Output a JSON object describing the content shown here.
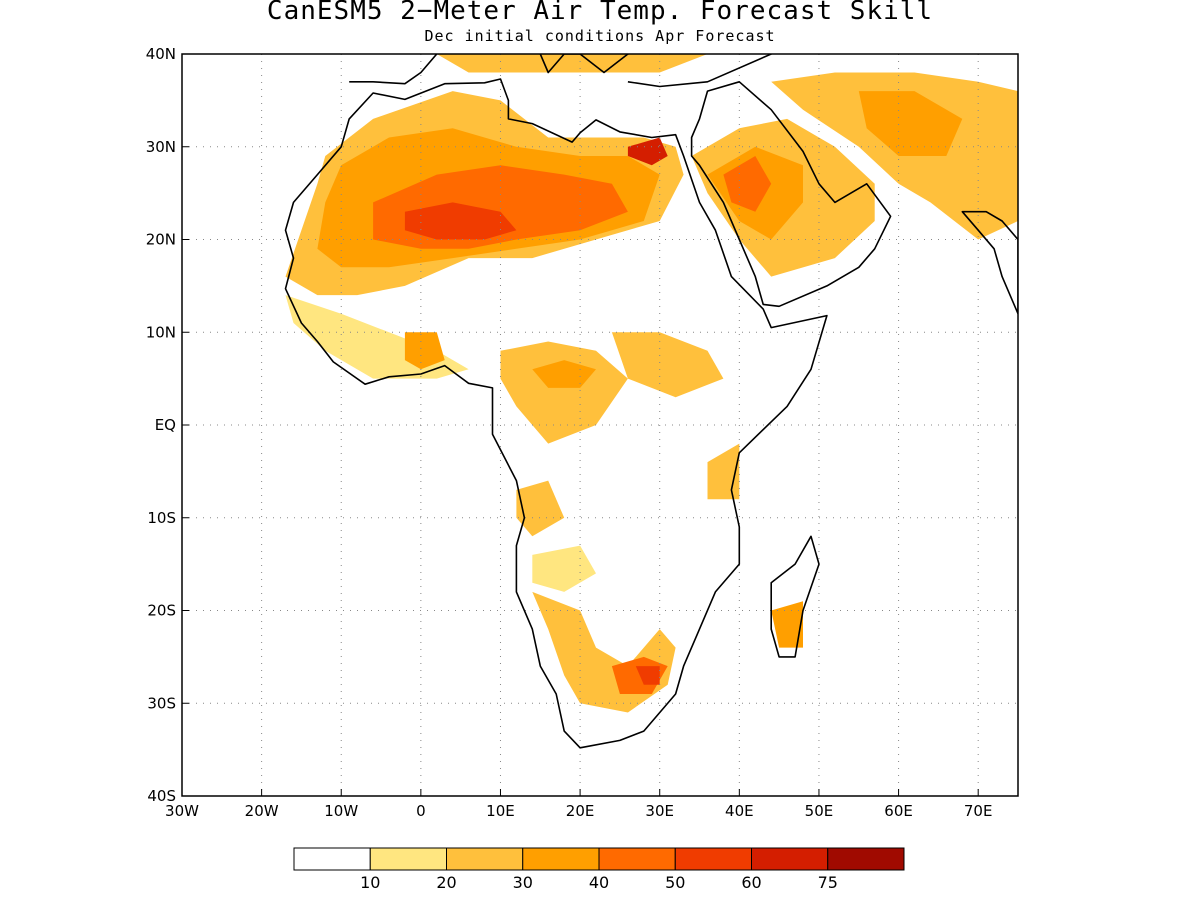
{
  "title": "CanESM5 2−Meter Air Temp. Forecast Skill",
  "subtitle": "Dec initial conditions  Apr Forecast",
  "axes": {
    "lon_min": -30,
    "lon_max": 75,
    "lat_min": -40,
    "lat_max": 40,
    "lon_ticks": [
      {
        "value": -30,
        "label": "30W"
      },
      {
        "value": -20,
        "label": "20W"
      },
      {
        "value": -10,
        "label": "10W"
      },
      {
        "value": 0,
        "label": "0"
      },
      {
        "value": 10,
        "label": "10E"
      },
      {
        "value": 20,
        "label": "20E"
      },
      {
        "value": 30,
        "label": "30E"
      },
      {
        "value": 40,
        "label": "40E"
      },
      {
        "value": 50,
        "label": "50E"
      },
      {
        "value": 60,
        "label": "60E"
      },
      {
        "value": 70,
        "label": "70E"
      }
    ],
    "lat_ticks": [
      {
        "value": 40,
        "label": "40N"
      },
      {
        "value": 30,
        "label": "30N"
      },
      {
        "value": 20,
        "label": "20N"
      },
      {
        "value": 10,
        "label": "10N"
      },
      {
        "value": 0,
        "label": "EQ"
      },
      {
        "value": -10,
        "label": "10S"
      },
      {
        "value": -20,
        "label": "20S"
      },
      {
        "value": -30,
        "label": "30S"
      },
      {
        "value": -40,
        "label": "40S"
      }
    ],
    "grid": "dotted"
  },
  "colorbar": {
    "colors": [
      "#ffffff",
      "#ffe680",
      "#ffc03c",
      "#ff9f00",
      "#ff6a00",
      "#f03c00",
      "#d41e00",
      "#a00a00"
    ],
    "labels": [
      "10",
      "20",
      "30",
      "40",
      "50",
      "60",
      "75"
    ]
  },
  "skill_regions": [
    {
      "level": 2,
      "points": [
        [
          -12,
          29
        ],
        [
          -6,
          33
        ],
        [
          4,
          36
        ],
        [
          10,
          35
        ],
        [
          16,
          31
        ],
        [
          24,
          31
        ],
        [
          28,
          31
        ],
        [
          32,
          30
        ],
        [
          33,
          27
        ],
        [
          30,
          22
        ],
        [
          22,
          20
        ],
        [
          14,
          18
        ],
        [
          6,
          18
        ],
        [
          -2,
          15
        ],
        [
          -8,
          14
        ],
        [
          -13,
          14
        ],
        [
          -17,
          16
        ],
        [
          -15,
          21
        ],
        [
          -13,
          26
        ]
      ]
    },
    {
      "level": 3,
      "points": [
        [
          -10,
          28
        ],
        [
          -4,
          31
        ],
        [
          4,
          32
        ],
        [
          12,
          30
        ],
        [
          20,
          29
        ],
        [
          26,
          29
        ],
        [
          30,
          27
        ],
        [
          28,
          22
        ],
        [
          20,
          20
        ],
        [
          12,
          19
        ],
        [
          4,
          18
        ],
        [
          -4,
          17
        ],
        [
          -10,
          17
        ],
        [
          -13,
          19
        ],
        [
          -12,
          24
        ]
      ]
    },
    {
      "level": 4,
      "points": [
        [
          -6,
          24
        ],
        [
          2,
          27
        ],
        [
          10,
          28
        ],
        [
          18,
          27
        ],
        [
          24,
          26
        ],
        [
          26,
          23
        ],
        [
          20,
          21
        ],
        [
          12,
          20
        ],
        [
          6,
          19
        ],
        [
          0,
          19
        ],
        [
          -6,
          20
        ]
      ]
    },
    {
      "level": 5,
      "points": [
        [
          -2,
          23
        ],
        [
          4,
          24
        ],
        [
          10,
          23
        ],
        [
          12,
          21
        ],
        [
          8,
          20
        ],
        [
          2,
          20
        ],
        [
          -2,
          21
        ]
      ]
    },
    {
      "level": 6,
      "points": [
        [
          26,
          30
        ],
        [
          30,
          31
        ],
        [
          31,
          29
        ],
        [
          29,
          28
        ],
        [
          26,
          29
        ]
      ]
    },
    {
      "level": 2,
      "points": [
        [
          34,
          29
        ],
        [
          40,
          32
        ],
        [
          46,
          33
        ],
        [
          52,
          30
        ],
        [
          57,
          26
        ],
        [
          57,
          22
        ],
        [
          52,
          18
        ],
        [
          44,
          16
        ],
        [
          40,
          20
        ],
        [
          36,
          25
        ]
      ]
    },
    {
      "level": 3,
      "points": [
        [
          36,
          27
        ],
        [
          42,
          30
        ],
        [
          48,
          28
        ],
        [
          48,
          24
        ],
        [
          44,
          20
        ],
        [
          40,
          22
        ]
      ]
    },
    {
      "level": 4,
      "points": [
        [
          38,
          27
        ],
        [
          42,
          29
        ],
        [
          44,
          26
        ],
        [
          42,
          23
        ],
        [
          39,
          24
        ]
      ]
    },
    {
      "level": 2,
      "points": [
        [
          44,
          37
        ],
        [
          52,
          38
        ],
        [
          62,
          38
        ],
        [
          70,
          37
        ],
        [
          75,
          36
        ],
        [
          75,
          22
        ],
        [
          70,
          20
        ],
        [
          64,
          24
        ],
        [
          60,
          26
        ],
        [
          55,
          30
        ],
        [
          48,
          34
        ]
      ]
    },
    {
      "level": 3,
      "points": [
        [
          55,
          36
        ],
        [
          62,
          36
        ],
        [
          68,
          33
        ],
        [
          66,
          29
        ],
        [
          60,
          29
        ],
        [
          56,
          32
        ]
      ]
    },
    {
      "level": 2,
      "points": [
        [
          -2,
          42
        ],
        [
          10,
          43
        ],
        [
          20,
          43
        ],
        [
          30,
          42
        ],
        [
          36,
          40
        ],
        [
          30,
          38
        ],
        [
          18,
          38
        ],
        [
          6,
          38
        ]
      ]
    },
    {
      "level": 1,
      "points": [
        [
          -17,
          14
        ],
        [
          -10,
          12
        ],
        [
          -4,
          10
        ],
        [
          2,
          8
        ],
        [
          6,
          6
        ],
        [
          2,
          5
        ],
        [
          -6,
          5
        ],
        [
          -12,
          8
        ],
        [
          -16,
          11
        ]
      ]
    },
    {
      "level": 3,
      "points": [
        [
          -2,
          10
        ],
        [
          2,
          10
        ],
        [
          3,
          7
        ],
        [
          0,
          6
        ],
        [
          -2,
          7
        ]
      ]
    },
    {
      "level": 2,
      "points": [
        [
          10,
          8
        ],
        [
          16,
          9
        ],
        [
          22,
          8
        ],
        [
          26,
          5
        ],
        [
          22,
          0
        ],
        [
          16,
          -2
        ],
        [
          12,
          2
        ],
        [
          10,
          5
        ]
      ]
    },
    {
      "level": 3,
      "points": [
        [
          14,
          6
        ],
        [
          18,
          7
        ],
        [
          22,
          6
        ],
        [
          20,
          4
        ],
        [
          16,
          4
        ]
      ]
    },
    {
      "level": 2,
      "points": [
        [
          24,
          10
        ],
        [
          30,
          10
        ],
        [
          36,
          8
        ],
        [
          38,
          5
        ],
        [
          32,
          3
        ],
        [
          26,
          5
        ]
      ]
    },
    {
      "level": 2,
      "points": [
        [
          12,
          -7
        ],
        [
          16,
          -6
        ],
        [
          18,
          -10
        ],
        [
          14,
          -12
        ],
        [
          12,
          -10
        ]
      ]
    },
    {
      "level": 1,
      "points": [
        [
          14,
          -14
        ],
        [
          20,
          -13
        ],
        [
          22,
          -16
        ],
        [
          18,
          -18
        ],
        [
          14,
          -17
        ]
      ]
    },
    {
      "level": 2,
      "points": [
        [
          14,
          -18
        ],
        [
          20,
          -20
        ],
        [
          22,
          -24
        ],
        [
          26,
          -26
        ],
        [
          30,
          -22
        ],
        [
          32,
          -24
        ],
        [
          31,
          -28
        ],
        [
          26,
          -31
        ],
        [
          20,
          -30
        ],
        [
          18,
          -27
        ],
        [
          16,
          -22
        ]
      ]
    },
    {
      "level": 4,
      "points": [
        [
          24,
          -26
        ],
        [
          28,
          -25
        ],
        [
          31,
          -26
        ],
        [
          29,
          -29
        ],
        [
          25,
          -29
        ]
      ]
    },
    {
      "level": 5,
      "points": [
        [
          27,
          -26
        ],
        [
          30,
          -26
        ],
        [
          30,
          -28
        ],
        [
          28,
          -28
        ]
      ]
    },
    {
      "level": 3,
      "points": [
        [
          44,
          -20
        ],
        [
          48,
          -19
        ],
        [
          48,
          -24
        ],
        [
          45,
          -24
        ]
      ]
    },
    {
      "level": 2,
      "points": [
        [
          36,
          -4
        ],
        [
          40,
          -2
        ],
        [
          40,
          -8
        ],
        [
          36,
          -8
        ]
      ]
    }
  ],
  "coastlines": {
    "africa": [
      [
        -17,
        21
      ],
      [
        -16,
        24
      ],
      [
        -13,
        27
      ],
      [
        -10,
        30
      ],
      [
        -9,
        33
      ],
      [
        -6,
        35.8
      ],
      [
        -2,
        35.1
      ],
      [
        3,
        36.8
      ],
      [
        8,
        36.9
      ],
      [
        10,
        37.3
      ],
      [
        11,
        35
      ],
      [
        11,
        33
      ],
      [
        14,
        32.5
      ],
      [
        19,
        30.5
      ],
      [
        20,
        31.5
      ],
      [
        22,
        32.9
      ],
      [
        25,
        31.6
      ],
      [
        29,
        31
      ],
      [
        32,
        31.3
      ],
      [
        33,
        29
      ],
      [
        35,
        24
      ],
      [
        37,
        21
      ],
      [
        39,
        16
      ],
      [
        43,
        12.5
      ],
      [
        44,
        10.5
      ],
      [
        51,
        11.8
      ],
      [
        49,
        6
      ],
      [
        46,
        2
      ],
      [
        40,
        -3
      ],
      [
        39,
        -7
      ],
      [
        40,
        -11
      ],
      [
        40,
        -15
      ],
      [
        37,
        -18
      ],
      [
        35,
        -22
      ],
      [
        33,
        -26
      ],
      [
        32,
        -29
      ],
      [
        28,
        -33
      ],
      [
        25,
        -34
      ],
      [
        20,
        -34.8
      ],
      [
        18,
        -33
      ],
      [
        17,
        -29
      ],
      [
        15,
        -26
      ],
      [
        14,
        -22
      ],
      [
        12,
        -18
      ],
      [
        12,
        -13
      ],
      [
        13,
        -10
      ],
      [
        12,
        -6
      ],
      [
        9,
        -1
      ],
      [
        9,
        4
      ],
      [
        6,
        4.5
      ],
      [
        3,
        6.4
      ],
      [
        0,
        5.5
      ],
      [
        -4,
        5.2
      ],
      [
        -7,
        4.4
      ],
      [
        -11,
        6.8
      ],
      [
        -13,
        9
      ],
      [
        -15,
        11
      ],
      [
        -17,
        14.7
      ],
      [
        -16,
        18
      ],
      [
        -17,
        21
      ]
    ],
    "arabia": [
      [
        34,
        29
      ],
      [
        35,
        28
      ],
      [
        38,
        24
      ],
      [
        40,
        20
      ],
      [
        42,
        16
      ],
      [
        43,
        13
      ],
      [
        45,
        12.8
      ],
      [
        51,
        15
      ],
      [
        55,
        17
      ],
      [
        57,
        19
      ],
      [
        59,
        22.5
      ],
      [
        56,
        26
      ],
      [
        52,
        24
      ],
      [
        50,
        26
      ],
      [
        48,
        29.5
      ],
      [
        44,
        34
      ],
      [
        40,
        37
      ],
      [
        36,
        36
      ],
      [
        35,
        33
      ],
      [
        34,
        31
      ],
      [
        34,
        29
      ]
    ],
    "madagascar": [
      [
        49,
        -12
      ],
      [
        50,
        -15
      ],
      [
        48,
        -20
      ],
      [
        47,
        -25
      ],
      [
        45,
        -25
      ],
      [
        44,
        -22
      ],
      [
        44,
        -17
      ],
      [
        47,
        -15
      ]
    ],
    "india": [
      [
        68,
        23
      ],
      [
        70,
        21
      ],
      [
        72,
        19
      ],
      [
        73,
        16
      ],
      [
        75,
        12
      ],
      [
        75,
        20
      ],
      [
        73,
        22
      ],
      [
        71,
        23
      ]
    ],
    "europe": [
      [
        -9,
        37
      ],
      [
        -6,
        37
      ],
      [
        -2,
        36.8
      ],
      [
        0,
        38
      ],
      [
        3,
        41
      ],
      [
        8,
        43
      ],
      [
        12,
        42
      ],
      [
        15,
        40
      ],
      [
        16,
        38
      ],
      [
        18,
        40
      ],
      [
        20,
        40
      ],
      [
        23,
        38
      ],
      [
        26,
        40
      ],
      [
        30,
        41
      ],
      [
        36,
        41
      ],
      [
        42,
        42
      ],
      [
        44,
        40
      ],
      [
        36,
        37
      ],
      [
        30,
        36.5
      ],
      [
        26,
        37
      ]
    ]
  }
}
